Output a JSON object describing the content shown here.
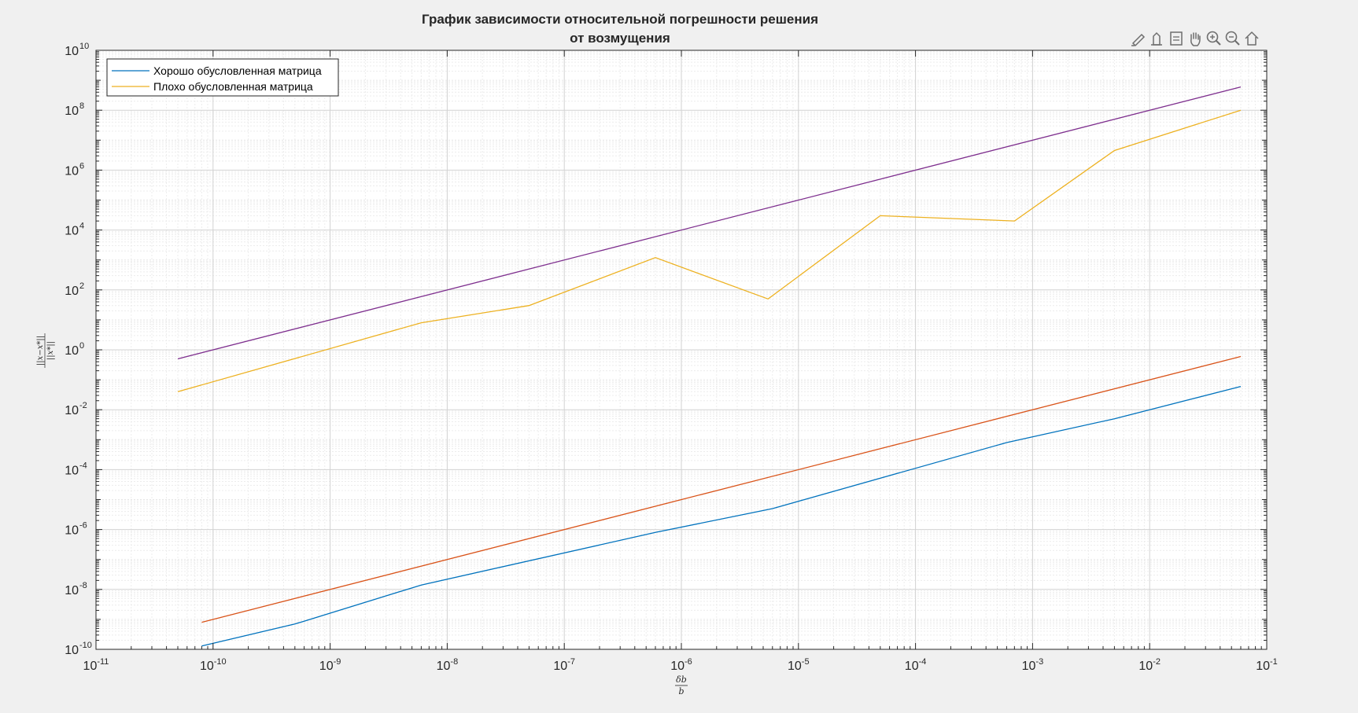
{
  "title_line1": "График зависимости относительной погрешности решения",
  "title_line2": "от возмущения",
  "toolbar": {
    "icons": [
      "brush-icon",
      "datatip-icon",
      "legend-icon",
      "pan-icon",
      "zoom-in-icon",
      "zoom-out-icon",
      "home-icon"
    ]
  },
  "chart_data": {
    "type": "line",
    "title": "График зависимости относительной погрешности решения от возмущения",
    "xscale": "log",
    "yscale": "log",
    "xlim": [
      1e-11,
      0.1
    ],
    "ylim": [
      1e-10,
      10000000000.0
    ],
    "xlabel": "δb/b",
    "ylabel": "||x−x*|| / ||x*||",
    "x_tick_exponents": [
      -11,
      -10,
      -9,
      -8,
      -7,
      -6,
      -5,
      -4,
      -3,
      -2,
      -1
    ],
    "y_tick_exponents": [
      -10,
      -8,
      -6,
      -4,
      -2,
      0,
      2,
      4,
      6,
      8,
      10
    ],
    "grid": true,
    "minor_grid": true,
    "legend": {
      "location": "top-left",
      "entries": [
        "Хорошо обусловленная матрица",
        "Плохо обусловленная матрица"
      ]
    },
    "series": [
      {
        "name": "Хорошо обусловленная матрица",
        "color": "#0072BD",
        "x": [
          8e-11,
          5e-10,
          6e-09,
          6e-07,
          6e-06,
          0.0006,
          0.005,
          0.06
        ],
        "y": [
          1.3e-10,
          7e-10,
          1.4e-08,
          8e-07,
          5e-06,
          0.0008,
          0.005,
          0.06
        ]
      },
      {
        "name": "Плохо обусловленная матрица",
        "color": "#EDB120",
        "x": [
          5e-11,
          6e-09,
          5e-08,
          6e-07,
          5.5e-06,
          5e-05,
          0.0007,
          0.005,
          0.06
        ],
        "y": [
          0.04,
          8,
          30,
          1200,
          50,
          30000.0,
          20000.0,
          4500000.0,
          100000000.0
        ]
      },
      {
        "color": "#D95319",
        "x": [
          8e-11,
          0.06
        ],
        "y": [
          8e-10,
          0.6
        ]
      },
      {
        "color": "#7E2F8E",
        "x": [
          5e-11,
          0.06
        ],
        "y": [
          0.5,
          600000000.0
        ]
      }
    ]
  }
}
